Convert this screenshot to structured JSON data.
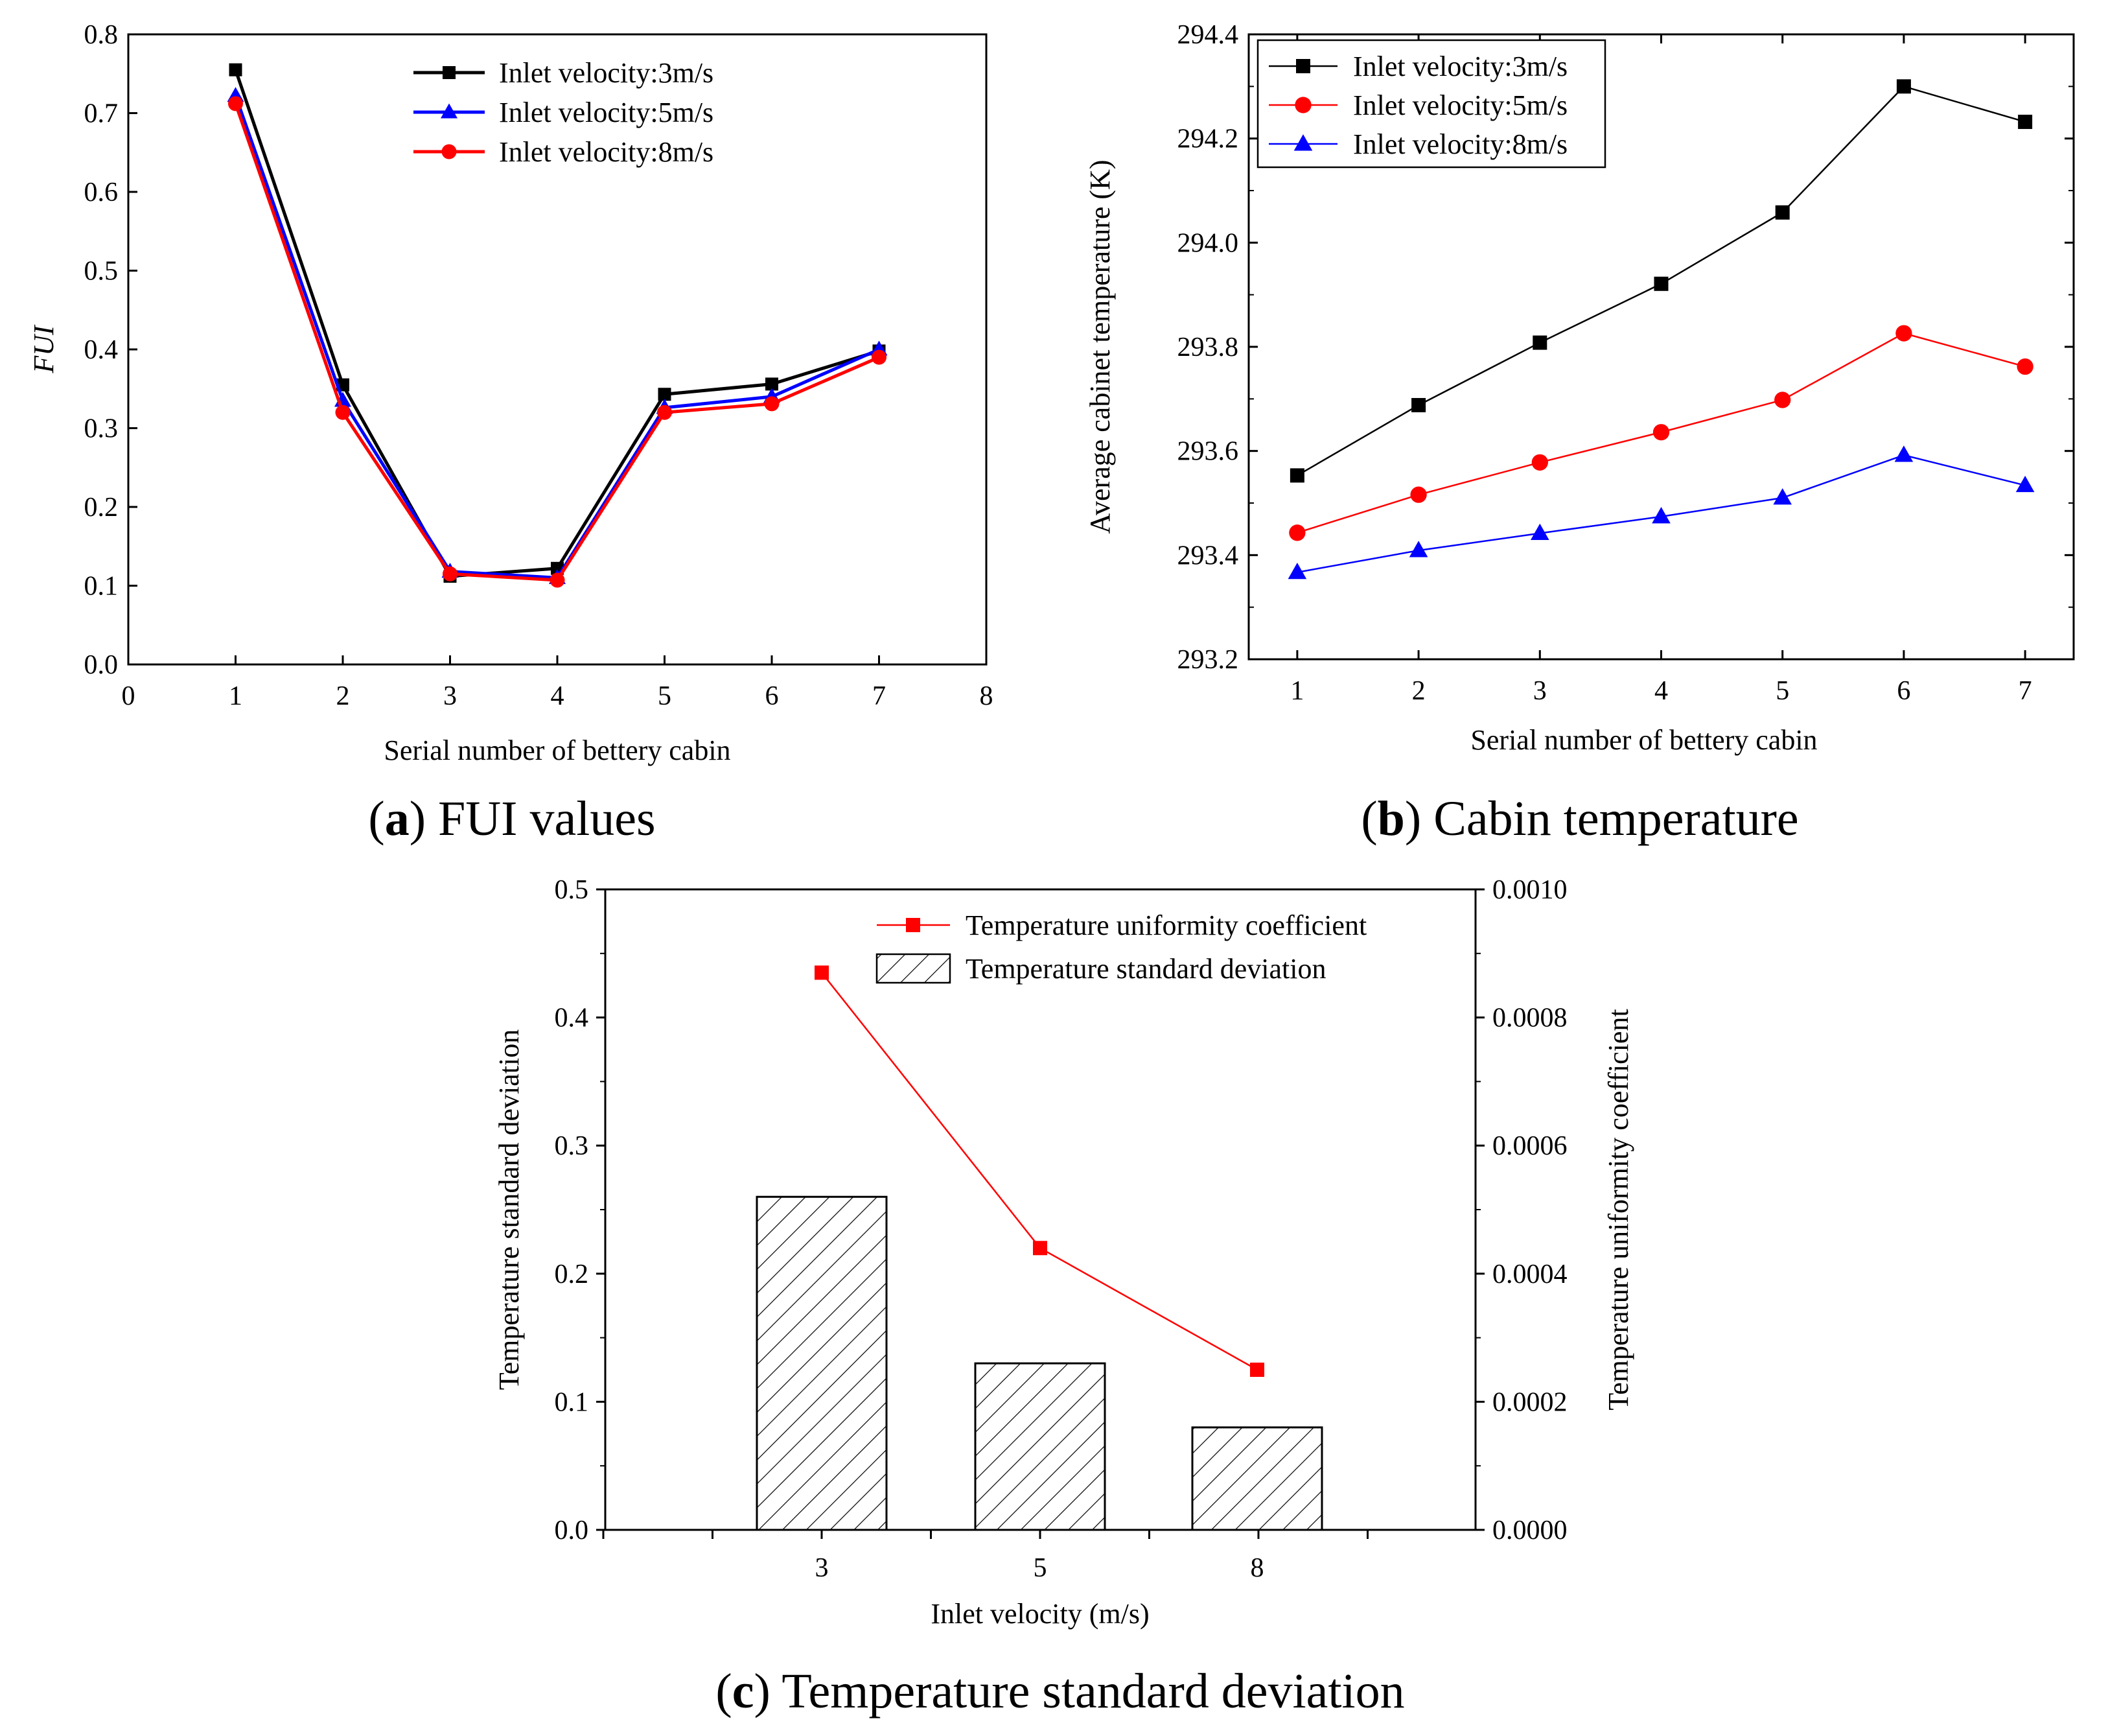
{
  "captions": {
    "a": {
      "letter": "a",
      "text": "FUI values"
    },
    "b": {
      "letter": "b",
      "text": "Cabin temperature"
    },
    "c": {
      "letter": "c",
      "text": "Temperature standard deviation"
    }
  },
  "colors": {
    "black": "#000000",
    "blue": "#0000ff",
    "red": "#ff0000"
  },
  "chart_data": [
    {
      "id": "a",
      "type": "line",
      "xlabel": "Serial number of bettery cabin",
      "ylabel": "FUI",
      "xlim": [
        0,
        8
      ],
      "ylim": [
        0,
        0.8
      ],
      "xticks": [
        "0",
        "1",
        "2",
        "3",
        "4",
        "5",
        "6",
        "7",
        "8"
      ],
      "yticks": [
        "0.0",
        "0.1",
        "0.2",
        "0.3",
        "0.4",
        "0.5",
        "0.6",
        "0.7",
        "0.8"
      ],
      "x": [
        1,
        2,
        3,
        4,
        5,
        6,
        7
      ],
      "legend_position": "top-right",
      "series": [
        {
          "name": "Inlet velocity:3m/s",
          "color": "#000000",
          "marker": "square",
          "values": [
            0.755,
            0.355,
            0.112,
            0.122,
            0.343,
            0.356,
            0.398
          ]
        },
        {
          "name": "Inlet velocity:5m/s",
          "color": "#0000ff",
          "marker": "triangle",
          "values": [
            0.722,
            0.335,
            0.118,
            0.11,
            0.326,
            0.34,
            0.4
          ]
        },
        {
          "name": "Inlet velocity:8m/s",
          "color": "#ff0000",
          "marker": "circle",
          "values": [
            0.712,
            0.32,
            0.115,
            0.107,
            0.32,
            0.331,
            0.39
          ]
        }
      ]
    },
    {
      "id": "b",
      "type": "line",
      "xlabel": "Serial number of bettery cabin",
      "ylabel": "Average cabinet temperature (K)",
      "xlim": [
        0.6,
        7.4
      ],
      "ylim": [
        293.2,
        294.4
      ],
      "xticks": [
        "1",
        "2",
        "3",
        "4",
        "5",
        "6",
        "7"
      ],
      "yticks": [
        "293.2",
        "293.4",
        "293.6",
        "293.8",
        "294.0",
        "294.2",
        "294.4"
      ],
      "x": [
        1,
        2,
        3,
        4,
        5,
        6,
        7
      ],
      "legend_position": "top-left",
      "series": [
        {
          "name": "Inlet velocity:3m/s",
          "color": "#000000",
          "marker": "square",
          "values": [
            293.553,
            293.688,
            293.808,
            293.921,
            294.058,
            294.3,
            294.232
          ]
        },
        {
          "name": "Inlet velocity:5m/s",
          "color": "#ff0000",
          "marker": "circle",
          "values": [
            293.443,
            293.516,
            293.578,
            293.636,
            293.698,
            293.826,
            293.762
          ]
        },
        {
          "name": "Inlet velocity:8m/s",
          "color": "#0000ff",
          "marker": "triangle",
          "values": [
            293.367,
            293.409,
            293.442,
            293.474,
            293.51,
            293.592,
            293.534
          ]
        }
      ]
    },
    {
      "id": "c",
      "type": "bar",
      "xlabel": "Inlet velocity (m/s)",
      "ylabel": "Temperature standard deviation",
      "y2label": "Temperature uniformity coefficient",
      "categories": [
        "3",
        "5",
        "8"
      ],
      "ylim": [
        0,
        0.5
      ],
      "y2lim": [
        0,
        0.001
      ],
      "yticks": [
        "0.0",
        "0.1",
        "0.2",
        "0.3",
        "0.4",
        "0.5"
      ],
      "y2ticks": [
        "0.0000",
        "0.0002",
        "0.0004",
        "0.0006",
        "0.0008",
        "0.0010"
      ],
      "legend_position": "top-right",
      "series": [
        {
          "name": "Temperature uniformity coefficient",
          "axis": "right",
          "kind": "line",
          "color": "#ff0000",
          "marker": "square",
          "values": [
            0.00087,
            0.00044,
            0.00025
          ]
        },
        {
          "name": "Temperature standard deviation",
          "axis": "left",
          "kind": "bar",
          "fill": "hatched",
          "values": [
            0.26,
            0.13,
            0.08
          ]
        }
      ]
    }
  ]
}
